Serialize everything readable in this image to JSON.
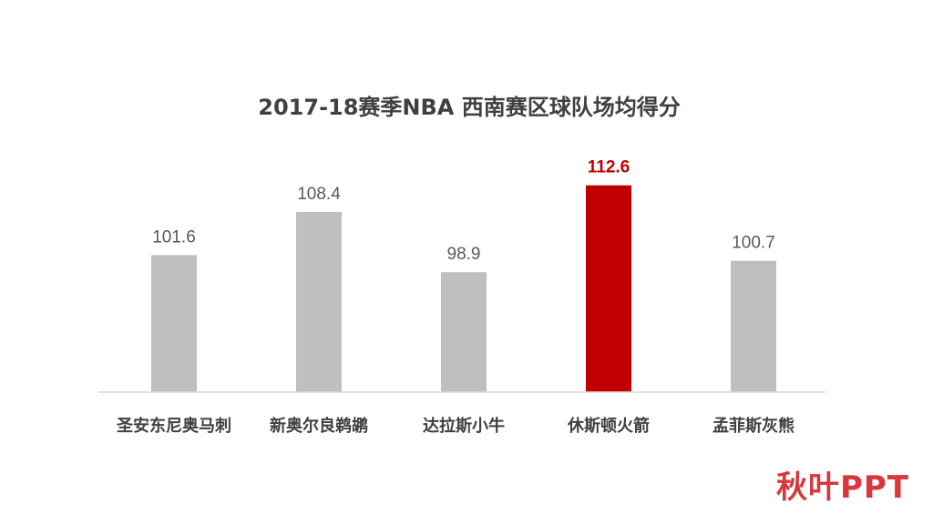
{
  "chart_data": {
    "type": "bar",
    "title": "2017-18赛季NBA 西南赛区球队场均得分",
    "categories": [
      "圣安东尼奥马刺",
      "新奥尔良鹈鹕",
      "达拉斯小牛",
      "休斯顿火箭",
      "孟菲斯灰熊"
    ],
    "values": [
      101.6,
      108.4,
      98.9,
      112.6,
      100.7
    ],
    "value_labels": [
      "101.6",
      "108.4",
      "98.9",
      "112.6",
      "100.7"
    ],
    "highlight_index": 3,
    "ylim": [
      80,
      115
    ],
    "grid": false,
    "legend": "none",
    "colors": {
      "bar": "#bfbfbf",
      "highlight": "#c00000",
      "axis": "#d9d9d9"
    }
  },
  "brand": {
    "text": "秋叶PPT",
    "color": "#d9363e"
  }
}
